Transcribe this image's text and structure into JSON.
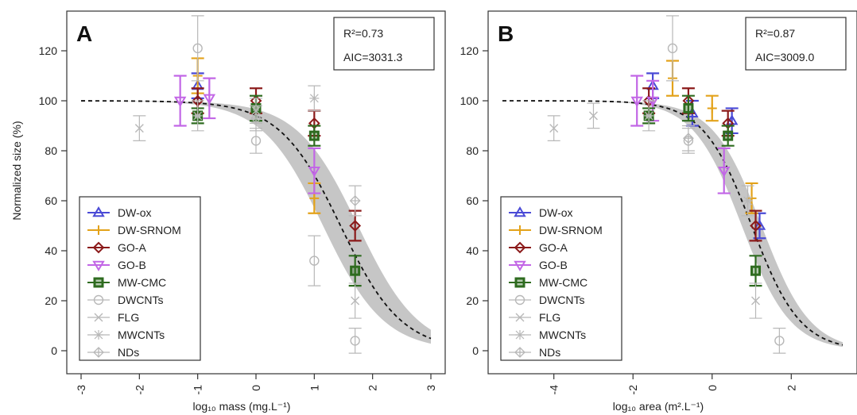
{
  "figure": {
    "ylabel": "Normalized size (%)"
  },
  "chart_data": [
    {
      "type": "scatter",
      "panel_label": "A",
      "xlabel": "log₁₀ mass (mg.L⁻¹)",
      "ylabel": "Normalized size (%)",
      "xlim": [
        -3,
        3
      ],
      "ylim": [
        0,
        120
      ],
      "xticks": [
        "-3",
        "-2",
        "-1",
        "0",
        "1",
        "2",
        "3"
      ],
      "yticks": [
        "0",
        "20",
        "40",
        "60",
        "80",
        "100",
        "120"
      ],
      "stats": [
        "R²=0.73",
        "AIC=3031.3"
      ],
      "fit": {
        "plateau": 100,
        "x50": 1.45,
        "slope": 1.15,
        "band_halfwidth": 6
      },
      "legend_position": "bottom-left",
      "series": [
        {
          "name": "DW-ox",
          "color": "#4a4ad6",
          "marker": "triangle-up",
          "points": [
            [
              -1,
              106,
              5
            ]
          ]
        },
        {
          "name": "DW-SRNOM",
          "color": "#e3a21a",
          "marker": "plus",
          "points": [
            [
              -1,
              110,
              7
            ],
            [
              1,
              61,
              6
            ]
          ]
        },
        {
          "name": "GO-A",
          "color": "#8b1a1a",
          "marker": "diamond",
          "points": [
            [
              -1,
              100,
              5
            ],
            [
              0,
              100,
              5
            ],
            [
              1,
              91,
              5
            ],
            [
              1.7,
              50,
              6
            ]
          ]
        },
        {
          "name": "GO-B",
          "color": "#c266e6",
          "marker": "triangle-down",
          "points": [
            [
              -1.3,
              100,
              10
            ],
            [
              -0.8,
              101,
              8
            ],
            [
              1,
              72,
              9
            ]
          ]
        },
        {
          "name": "MW-CMC",
          "color": "#2e6b1f",
          "marker": "square",
          "points": [
            [
              -1,
              94,
              3
            ],
            [
              0,
              97,
              5
            ],
            [
              1,
              86,
              4
            ],
            [
              1.7,
              32,
              6
            ]
          ]
        },
        {
          "name": "DWCNTs",
          "color": "#b8b8b8",
          "marker": "circle",
          "points": [
            [
              -1,
              121,
              13
            ],
            [
              0,
              84,
              5
            ],
            [
              1,
              36,
              10
            ],
            [
              1.7,
              4,
              5
            ]
          ]
        },
        {
          "name": "FLG",
          "color": "#b8b8b8",
          "marker": "x",
          "points": [
            [
              -2,
              89,
              5
            ],
            [
              0,
              96,
              5
            ],
            [
              1.7,
              20,
              7
            ]
          ]
        },
        {
          "name": "MWCNTs",
          "color": "#b8b8b8",
          "marker": "star",
          "points": [
            [
              -1,
              94,
              6
            ],
            [
              1,
              101,
              5
            ]
          ]
        },
        {
          "name": "NDs",
          "color": "#b8b8b8",
          "marker": "diamond-plus",
          "points": [
            [
              0,
              93,
              5
            ],
            [
              1.7,
              60,
              6
            ]
          ]
        }
      ]
    },
    {
      "type": "scatter",
      "panel_label": "B",
      "xlabel": "log₁₀ area (m².L⁻¹)",
      "ylabel": "",
      "xlim": [
        -5.3,
        3.3
      ],
      "ylim": [
        0,
        120
      ],
      "xticks": [
        "-4",
        "-2",
        "0",
        "2"
      ],
      "yticks": [
        "0",
        "20",
        "40",
        "60",
        "80",
        "100",
        "120"
      ],
      "stats": [
        "R²=0.87",
        "AIC=3009.0"
      ],
      "fit": {
        "plateau": 100,
        "x50": 1.0,
        "slope": 1.35,
        "band_halfwidth": 5
      },
      "legend_position": "bottom-left",
      "series": [
        {
          "name": "DW-ox",
          "color": "#4a4ad6",
          "marker": "triangle-up",
          "points": [
            [
              -1.5,
              106,
              5
            ],
            [
              -0.5,
              95,
              5
            ],
            [
              0.5,
              92,
              5
            ],
            [
              1.2,
              50,
              5
            ]
          ]
        },
        {
          "name": "DW-SRNOM",
          "color": "#e3a21a",
          "marker": "plus",
          "points": [
            [
              -1,
              109,
              7
            ],
            [
              0,
              97,
              5
            ],
            [
              1,
              61,
              6
            ]
          ]
        },
        {
          "name": "GO-A",
          "color": "#8b1a1a",
          "marker": "diamond",
          "points": [
            [
              -1.6,
              100,
              5
            ],
            [
              -0.6,
              100,
              5
            ],
            [
              0.4,
              91,
              5
            ],
            [
              1.1,
              50,
              6
            ]
          ]
        },
        {
          "name": "GO-B",
          "color": "#c266e6",
          "marker": "triangle-down",
          "points": [
            [
              -1.9,
              100,
              10
            ],
            [
              -1.5,
              100,
              8
            ],
            [
              0.3,
              72,
              9
            ]
          ]
        },
        {
          "name": "MW-CMC",
          "color": "#2e6b1f",
          "marker": "square",
          "points": [
            [
              -1.6,
              94,
              3
            ],
            [
              -0.6,
              97,
              5
            ],
            [
              0.4,
              86,
              4
            ],
            [
              1.1,
              32,
              6
            ]
          ]
        },
        {
          "name": "DWCNTs",
          "color": "#b8b8b8",
          "marker": "circle",
          "points": [
            [
              -1,
              121,
              13
            ],
            [
              -0.6,
              84,
              5
            ],
            [
              1.7,
              4,
              5
            ]
          ]
        },
        {
          "name": "FLG",
          "color": "#b8b8b8",
          "marker": "x",
          "points": [
            [
              -4,
              89,
              5
            ],
            [
              -3,
              94,
              5
            ],
            [
              1.1,
              20,
              7
            ]
          ]
        },
        {
          "name": "MWCNTs",
          "color": "#b8b8b8",
          "marker": "star",
          "points": [
            [
              -1.6,
              94,
              6
            ],
            [
              0.9,
              60,
              6
            ]
          ]
        },
        {
          "name": "NDs",
          "color": "#b8b8b8",
          "marker": "diamond-plus",
          "points": [
            [
              -0.6,
              85,
              5
            ]
          ]
        }
      ]
    }
  ]
}
